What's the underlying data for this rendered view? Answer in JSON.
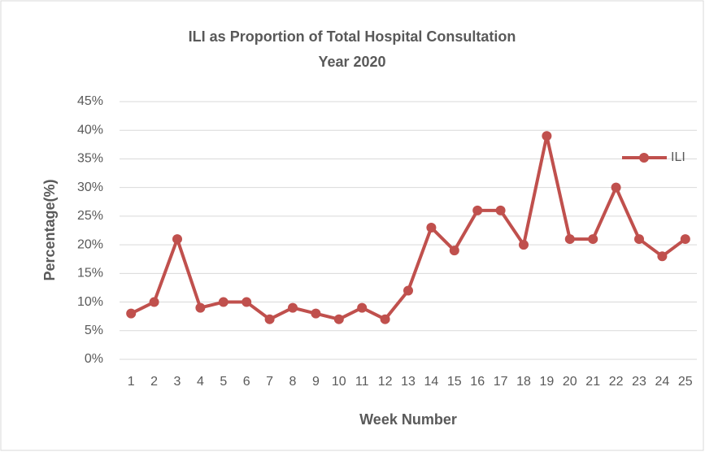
{
  "chart_data": {
    "type": "line",
    "title": "ILI as Proportion of Total Hospital Consultation",
    "subtitle": "Year 2020",
    "x_label": "Week Number",
    "y_label": "Percentage(%)",
    "categories": [
      "1",
      "2",
      "3",
      "4",
      "5",
      "6",
      "7",
      "8",
      "9",
      "10",
      "11",
      "12",
      "13",
      "14",
      "15",
      "16",
      "17",
      "18",
      "19",
      "20",
      "21",
      "22",
      "23",
      "24",
      "25"
    ],
    "series": [
      {
        "name": "ILI",
        "color": "#c0504d",
        "values": [
          8,
          10,
          21,
          9,
          10,
          10,
          7,
          9,
          8,
          7,
          9,
          7,
          12,
          23,
          19,
          26,
          26,
          20,
          39,
          21,
          21,
          30,
          21,
          18,
          21
        ]
      }
    ],
    "ylim": [
      0,
      45
    ],
    "yticks": [
      {
        "value": 0,
        "label": "0%"
      },
      {
        "value": 5,
        "label": "5%"
      },
      {
        "value": 10,
        "label": "10%"
      },
      {
        "value": 15,
        "label": "15%"
      },
      {
        "value": 20,
        "label": "20%"
      },
      {
        "value": 25,
        "label": "25%"
      },
      {
        "value": 30,
        "label": "30%"
      },
      {
        "value": 35,
        "label": "35%"
      },
      {
        "value": 40,
        "label": "40%"
      },
      {
        "value": 45,
        "label": "45%"
      }
    ],
    "grid": true,
    "legend": "right"
  }
}
